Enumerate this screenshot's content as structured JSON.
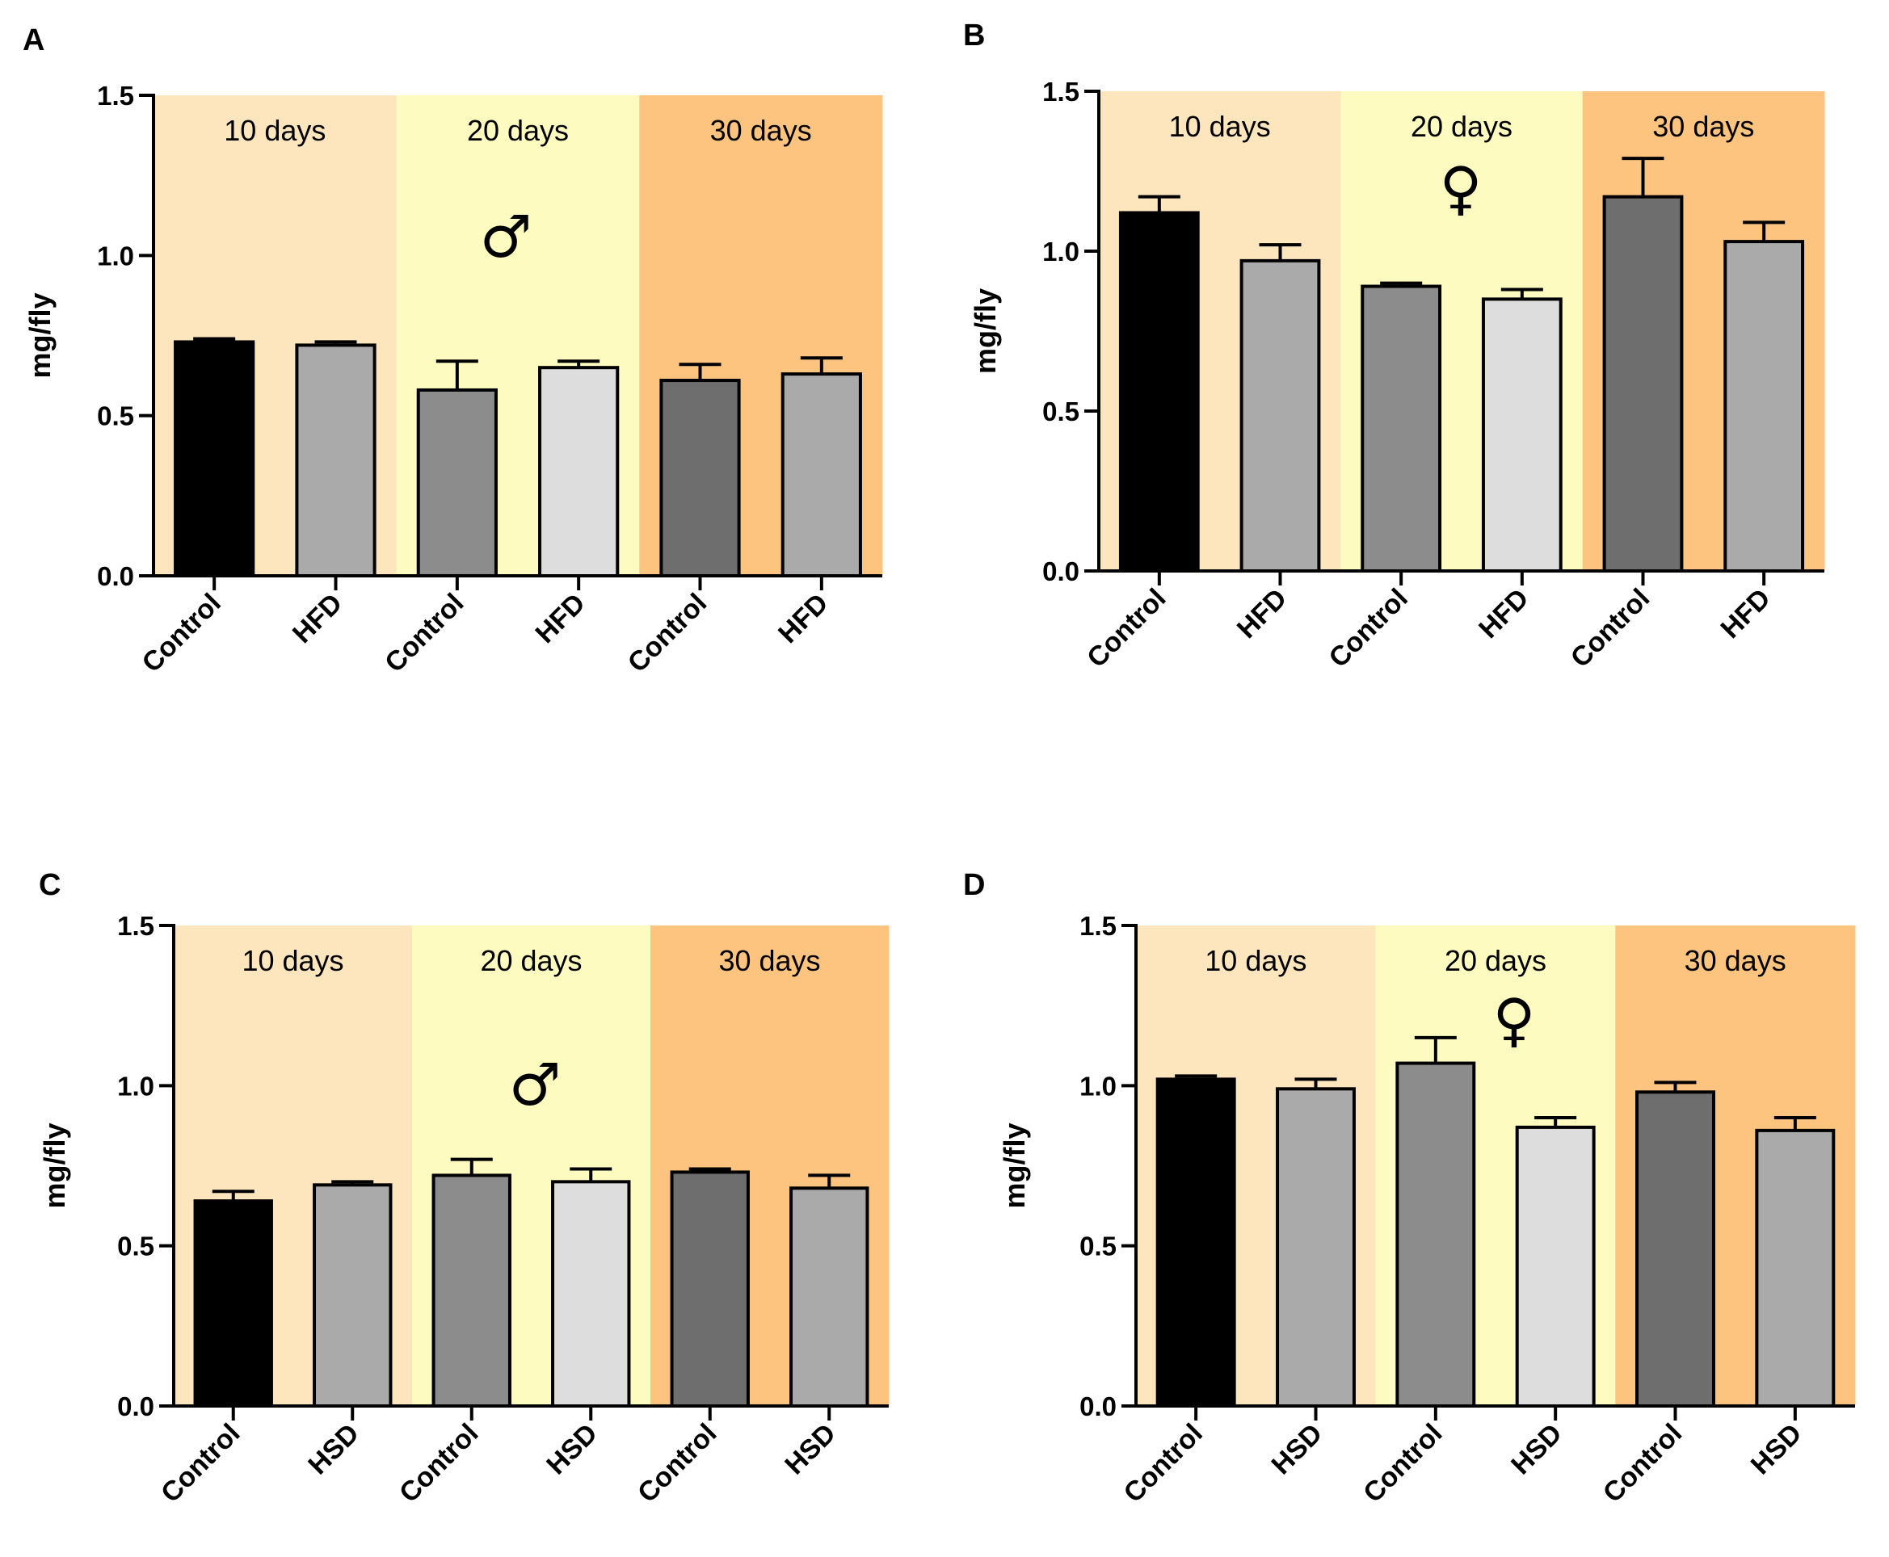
{
  "colors": {
    "band_10_days": "#fde6bd",
    "band_20_days": "#fdfbbf",
    "band_30_days": "#fcc47f",
    "bar_control_10": "#000000",
    "bar_diet_10": "#aaaaaa",
    "bar_control_20": "#8c8c8c",
    "bar_diet_20": "#dddddd",
    "bar_control_30": "#6e6e6e",
    "bar_diet_30": "#aaaaaa"
  },
  "chart_data": [
    {
      "panel": "A",
      "type": "bar",
      "ylabel": "mg/fly",
      "ylim": [
        0,
        1.5
      ],
      "yticks": [
        "0.0",
        "0.5",
        "1.0",
        "1.5"
      ],
      "bands": [
        "10 days",
        "20 days",
        "30 days"
      ],
      "sex_symbol": "♂",
      "categories": [
        "Control",
        "HFD",
        "Control",
        "HFD",
        "Control",
        "HFD"
      ],
      "values": [
        0.73,
        0.72,
        0.58,
        0.65,
        0.61,
        0.63
      ],
      "errors": [
        0.01,
        0.01,
        0.09,
        0.02,
        0.05,
        0.05
      ]
    },
    {
      "panel": "B",
      "type": "bar",
      "ylabel": "mg/fly",
      "ylim": [
        0,
        1.5
      ],
      "yticks": [
        "0.0",
        "0.5",
        "1.0",
        "1.5"
      ],
      "bands": [
        "10 days",
        "20 days",
        "30 days"
      ],
      "sex_symbol": "♀",
      "categories": [
        "Control",
        "HFD",
        "Control",
        "HFD",
        "Control",
        "HFD"
      ],
      "values": [
        1.12,
        0.97,
        0.89,
        0.85,
        1.17,
        1.03
      ],
      "errors": [
        0.05,
        0.05,
        0.01,
        0.03,
        0.12,
        0.06
      ]
    },
    {
      "panel": "C",
      "type": "bar",
      "ylabel": "mg/fly",
      "ylim": [
        0,
        1.5
      ],
      "yticks": [
        "0.0",
        "0.5",
        "1.0",
        "1.5"
      ],
      "bands": [
        "10 days",
        "20 days",
        "30 days"
      ],
      "sex_symbol": "♂",
      "categories": [
        "Control",
        "HSD",
        "Control",
        "HSD",
        "Control",
        "HSD"
      ],
      "values": [
        0.64,
        0.69,
        0.72,
        0.7,
        0.73,
        0.68
      ],
      "errors": [
        0.03,
        0.01,
        0.05,
        0.04,
        0.01,
        0.04
      ]
    },
    {
      "panel": "D",
      "type": "bar",
      "ylabel": "mg/fly",
      "ylim": [
        0,
        1.5
      ],
      "yticks": [
        "0.0",
        "0.5",
        "1.0",
        "1.5"
      ],
      "bands": [
        "10 days",
        "20 days",
        "30 days"
      ],
      "sex_symbol": "♀",
      "categories": [
        "Control",
        "HSD",
        "Control",
        "HSD",
        "Control",
        "HSD"
      ],
      "values": [
        1.02,
        0.99,
        1.07,
        0.87,
        0.98,
        0.86
      ],
      "errors": [
        0.01,
        0.03,
        0.08,
        0.03,
        0.03,
        0.04
      ]
    }
  ]
}
